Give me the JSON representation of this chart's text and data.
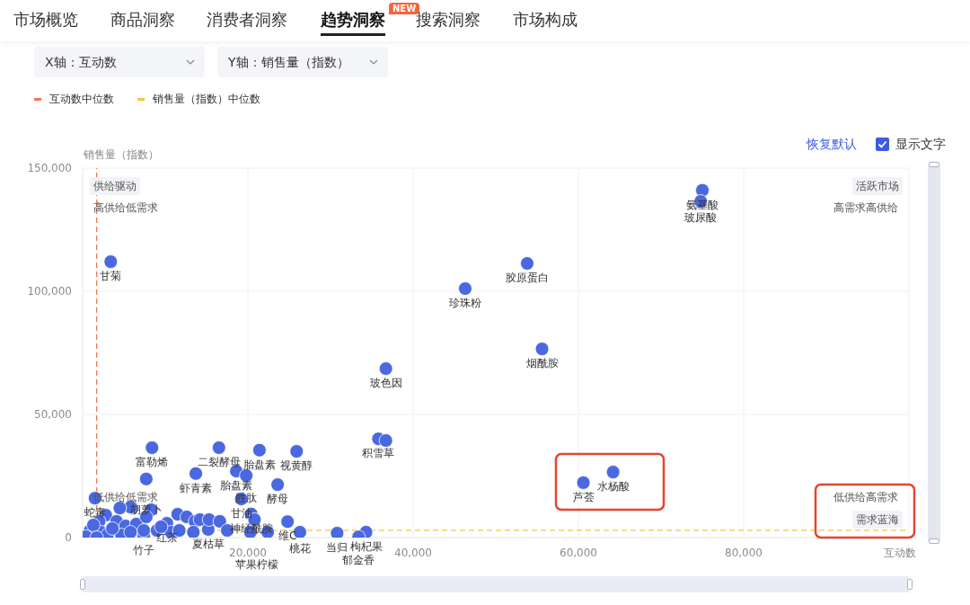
{
  "chart_data": {
    "type": "scatter",
    "xlabel": "互动数",
    "ylabel": "销售量（指数）",
    "x": [
      3400,
      75000,
      74800,
      53800,
      46300,
      55600,
      36700,
      35800,
      60600,
      64200,
      8400,
      16500,
      21400,
      25900,
      13700,
      18600,
      19800,
      23600,
      7700,
      19200,
      20400,
      24800,
      26300,
      30800,
      34300,
      33400,
      22400,
      20300,
      1500,
      7400,
      10200,
      15200,
      36700,
      2800,
      2000,
      4100,
      5200,
      6500,
      7400,
      6000,
      8300,
      7700,
      11500,
      12600,
      13600,
      14200,
      15300,
      2200,
      3000,
      4700,
      900,
      3600,
      5800,
      9000,
      10700,
      11700,
      13400,
      1300,
      400,
      1700,
      16600,
      17500,
      20800,
      9500,
      5800,
      4500
    ],
    "values": [
      112000,
      141000,
      136500,
      111300,
      101100,
      76600,
      68600,
      40100,
      22300,
      26600,
      36500,
      36500,
      35500,
      35000,
      26000,
      27000,
      25200,
      21500,
      23800,
      15700,
      9600,
      6500,
      2200,
      1800,
      2200,
      300,
      2200,
      2200,
      16000,
      700,
      5800,
      3300,
      39400,
      9100,
      6600,
      6600,
      4700,
      5500,
      2900,
      12000,
      11300,
      8400,
      9500,
      8400,
      6600,
      7300,
      7300,
      2200,
      1100,
      1100,
      2900,
      3700,
      2200,
      2900,
      2200,
      2900,
      2200,
      5100,
      400,
      0,
      6600,
      2900,
      7300,
      4400,
      12400,
      12000
    ],
    "color": "#4a68e0",
    "xlim": [
      0,
      100000
    ],
    "xticks": [
      {
        "value": 0,
        "label": null
      },
      {
        "value": 20000,
        "label": "20,000"
      },
      {
        "value": 40000,
        "label": "40,000"
      },
      {
        "value": 60000,
        "label": "60,000"
      },
      {
        "value": 80000,
        "label": "80,000"
      },
      {
        "value": 100000,
        "label": null
      }
    ],
    "ylim": [
      0,
      150000
    ],
    "yticks": [
      0,
      {
        "value": 50000,
        "label": "50,000"
      },
      {
        "value": 100000,
        "label": "100,000"
      },
      {
        "value": 150000,
        "label": "150,000"
      }
    ],
    "grid": true,
    "marker": "circle",
    "legend": "top left",
    "ref_lines": [
      {
        "axis": "x",
        "value": 1700,
        "label": "互动数中位数",
        "color": "#ee7753",
        "line_style": "dashed"
      },
      {
        "axis": "y",
        "value": 3000,
        "label": "销售量（指数）中位数",
        "color": "#f5c443",
        "line_style": "dashed"
      }
    ],
    "annotations": [
      "市场概览",
      "商品洞察",
      "消费者洞察",
      "趋势洞察",
      "NEW",
      "搜索洞察",
      "市场构成",
      "X轴：互动数",
      "Y轴：销售量（指数）",
      "恢复默认",
      "显示文字",
      "供给驱动",
      "高供给低需求",
      "活跃市场",
      "高需求高供给",
      "低供给高需求",
      "需求蓝海",
      "低供给低需求",
      {
        "text": "甘菊",
        "x": 3400,
        "y": 112000
      },
      {
        "text": "氨基酸",
        "x": 75000,
        "y": 141000
      },
      {
        "text": "玻尿酸",
        "x": 74800,
        "y": 136500
      },
      {
        "text": "胶原蛋白",
        "x": 53800,
        "y": 111300
      },
      {
        "text": "珍珠粉",
        "x": 46300,
        "y": 101100
      },
      {
        "text": "烟酰胺",
        "x": 55600,
        "y": 76600
      },
      {
        "text": "玻色因",
        "x": 36700,
        "y": 68600
      },
      {
        "text": "积雪草",
        "x": 35800,
        "y": 40100
      },
      {
        "text": "芦荟",
        "x": 60600,
        "y": 22300
      },
      {
        "text": "水杨酸",
        "x": 64200,
        "y": 26600
      },
      {
        "text": "富勒烯",
        "x": 8400,
        "y": 36500
      },
      {
        "text": "二裂酵母",
        "x": 16500,
        "y": 36500
      },
      {
        "text": "胎盘素",
        "x": 21400,
        "y": 35500
      },
      {
        "text": "视黄醇",
        "x": 25900,
        "y": 35000
      },
      {
        "text": "虾青素",
        "x": 13700,
        "y": 26000
      },
      {
        "text": "胎盘素",
        "x": 18600,
        "y": 27000
      },
      {
        "text": "胜肽",
        "x": 19800,
        "y": 25200
      },
      {
        "text": "酵母",
        "x": 23600,
        "y": 21500
      },
      {
        "text": "胡萝卜",
        "x": 7700,
        "y": 23800
      },
      {
        "text": "甘油",
        "x": 19200,
        "y": 15700
      },
      {
        "text": "神经酰胺",
        "x": 20400,
        "y": 9600
      },
      {
        "text": "维C",
        "x": 24800,
        "y": 6500
      },
      {
        "text": "桃花",
        "x": 26300,
        "y": 2200
      },
      {
        "text": "当归",
        "x": 30800,
        "y": 1800
      },
      {
        "text": "枸杞果",
        "x": 34300,
        "y": 2200
      },
      {
        "text": "郁金香",
        "x": 33400,
        "y": 300
      },
      {
        "text": "柠檬",
        "x": 22400,
        "y": 2200
      },
      {
        "text": "苹果",
        "x": 20300,
        "y": 2200
      },
      {
        "text": "蛇毒",
        "x": 1500,
        "y": 16000
      },
      {
        "text": "竹子",
        "x": 7400,
        "y": 700
      },
      {
        "text": "红茶",
        "x": 10200,
        "y": 5800
      },
      {
        "text": "夏枯草",
        "x": 15200,
        "y": 3300
      }
    ]
  }
}
